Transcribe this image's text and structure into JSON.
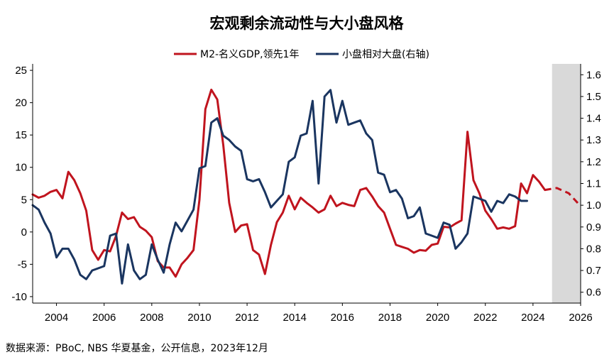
{
  "chart_data": {
    "type": "line",
    "title": "宏观剩余流动性与大小盘风格",
    "x_range": [
      2003,
      2026
    ],
    "x_ticks": [
      "2004",
      "2006",
      "2008",
      "2010",
      "2012",
      "2014",
      "2016",
      "2018",
      "2020",
      "2022",
      "2024",
      "2026"
    ],
    "y_left": {
      "range": [
        -11,
        26
      ],
      "ticks": [
        "25",
        "20",
        "15",
        "10",
        "5",
        "0",
        "-5",
        "-10"
      ]
    },
    "y_right": {
      "range": [
        0.55,
        1.65
      ],
      "ticks": [
        "1.6",
        "1.5",
        "1.4",
        "1.3",
        "1.2",
        "1.1",
        "1.0",
        "0.9",
        "0.8",
        "0.7",
        "0.6"
      ]
    },
    "shaded_region": {
      "x": [
        2024.8,
        2026.1
      ],
      "color": "#d9d9d9"
    },
    "series": [
      {
        "name": "M2-名义GDP,领先1年",
        "axis": "left",
        "color": "#c0141e",
        "style": "solid",
        "x": [
          2003.0,
          2003.25,
          2003.5,
          2003.75,
          2004.0,
          2004.25,
          2004.5,
          2004.75,
          2005.0,
          2005.25,
          2005.5,
          2005.75,
          2006.0,
          2006.25,
          2006.5,
          2006.75,
          2007.0,
          2007.25,
          2007.5,
          2007.75,
          2008.0,
          2008.25,
          2008.5,
          2008.75,
          2009.0,
          2009.25,
          2009.5,
          2009.75,
          2010.0,
          2010.25,
          2010.5,
          2010.75,
          2011.0,
          2011.25,
          2011.5,
          2011.75,
          2012.0,
          2012.25,
          2012.5,
          2012.75,
          2013.0,
          2013.25,
          2013.5,
          2013.75,
          2014.0,
          2014.25,
          2014.5,
          2014.75,
          2015.0,
          2015.25,
          2015.5,
          2015.75,
          2016.0,
          2016.25,
          2016.5,
          2016.75,
          2017.0,
          2017.25,
          2017.5,
          2017.75,
          2018.0,
          2018.25,
          2018.5,
          2018.75,
          2019.0,
          2019.25,
          2019.5,
          2019.75,
          2020.0,
          2020.25,
          2020.5,
          2020.75,
          2021.0,
          2021.25,
          2021.5,
          2021.75,
          2022.0,
          2022.25,
          2022.5,
          2022.75,
          2023.0,
          2023.25,
          2023.5,
          2023.75,
          2024.0,
          2024.25,
          2024.5
        ],
        "y": [
          5.8,
          5.3,
          5.6,
          6.2,
          6.5,
          5.2,
          9.3,
          8.0,
          6.0,
          3.3,
          -2.8,
          -4.3,
          -2.8,
          -3.0,
          -0.6,
          3.0,
          2.0,
          2.3,
          0.8,
          0.2,
          -0.8,
          -4.5,
          -5.5,
          -5.5,
          -6.9,
          -5.0,
          -4.0,
          -2.8,
          5.0,
          19.0,
          22.0,
          20.5,
          13.5,
          4.5,
          0.0,
          1.0,
          1.2,
          -2.8,
          -3.5,
          -6.5,
          -2.0,
          1.5,
          3.0,
          5.6,
          3.5,
          5.3,
          4.5,
          3.8,
          3.0,
          3.5,
          5.6,
          4.0,
          4.5,
          4.2,
          4.0,
          6.5,
          6.8,
          5.5,
          4.0,
          3.0,
          0.5,
          -2.0,
          -2.3,
          -2.6,
          -3.2,
          -2.8,
          -2.9,
          -2.0,
          -1.8,
          0.8,
          0.7,
          1.3,
          1.8,
          15.5,
          8.0,
          6.0,
          3.3,
          2.0,
          0.5,
          0.7,
          0.5,
          0.9,
          7.5,
          6.0,
          8.8,
          7.8,
          6.5
        ]
      },
      {
        "name": "",
        "axis": "left",
        "color": "#c0141e",
        "style": "dashed",
        "x": [
          2024.5,
          2025.0,
          2025.5,
          2026.0
        ],
        "y": [
          6.5,
          6.8,
          6.0,
          4.0
        ]
      },
      {
        "name": "小盘相对大盘(右轴)",
        "axis": "right",
        "color": "#1a3560",
        "style": "solid",
        "x": [
          2003.0,
          2003.25,
          2003.5,
          2003.75,
          2004.0,
          2004.25,
          2004.5,
          2004.75,
          2005.0,
          2005.25,
          2005.5,
          2005.75,
          2006.0,
          2006.25,
          2006.5,
          2006.75,
          2007.0,
          2007.25,
          2007.5,
          2007.75,
          2008.0,
          2008.25,
          2008.5,
          2008.75,
          2009.0,
          2009.25,
          2009.5,
          2009.75,
          2010.0,
          2010.25,
          2010.5,
          2010.75,
          2011.0,
          2011.25,
          2011.5,
          2011.75,
          2012.0,
          2012.25,
          2012.5,
          2012.75,
          2013.0,
          2013.25,
          2013.5,
          2013.75,
          2014.0,
          2014.25,
          2014.5,
          2014.75,
          2015.0,
          2015.25,
          2015.5,
          2015.75,
          2016.0,
          2016.25,
          2016.5,
          2016.75,
          2017.0,
          2017.25,
          2017.5,
          2017.75,
          2018.0,
          2018.25,
          2018.5,
          2018.75,
          2019.0,
          2019.25,
          2019.5,
          2019.75,
          2020.0,
          2020.25,
          2020.5,
          2020.75,
          2021.0,
          2021.25,
          2021.5,
          2021.75,
          2022.0,
          2022.25,
          2022.5,
          2022.75,
          2023.0,
          2023.25,
          2023.5,
          2023.75
        ],
        "y": [
          1.0,
          0.98,
          0.92,
          0.87,
          0.76,
          0.8,
          0.8,
          0.75,
          0.68,
          0.66,
          0.7,
          0.71,
          0.72,
          0.86,
          0.87,
          0.64,
          0.82,
          0.7,
          0.66,
          0.68,
          0.82,
          0.75,
          0.69,
          0.82,
          0.92,
          0.88,
          0.93,
          0.98,
          1.17,
          1.18,
          1.38,
          1.4,
          1.32,
          1.3,
          1.27,
          1.25,
          1.12,
          1.11,
          1.12,
          1.06,
          0.99,
          1.02,
          1.05,
          1.2,
          1.22,
          1.32,
          1.33,
          1.48,
          1.1,
          1.5,
          1.53,
          1.38,
          1.48,
          1.37,
          1.38,
          1.39,
          1.33,
          1.3,
          1.15,
          1.14,
          1.06,
          1.07,
          1.03,
          0.94,
          0.95,
          0.99,
          0.87,
          0.86,
          0.85,
          0.92,
          0.91,
          0.8,
          0.83,
          0.87,
          1.04,
          1.03,
          1.02,
          0.97,
          1.02,
          1.01,
          1.05,
          1.04,
          1.02,
          1.02
        ]
      }
    ],
    "legend": {
      "position": "top-center"
    }
  },
  "footer": {
    "source": "数据来源：PBoC, NBS  华夏基金，公开信息，2023年12月"
  }
}
